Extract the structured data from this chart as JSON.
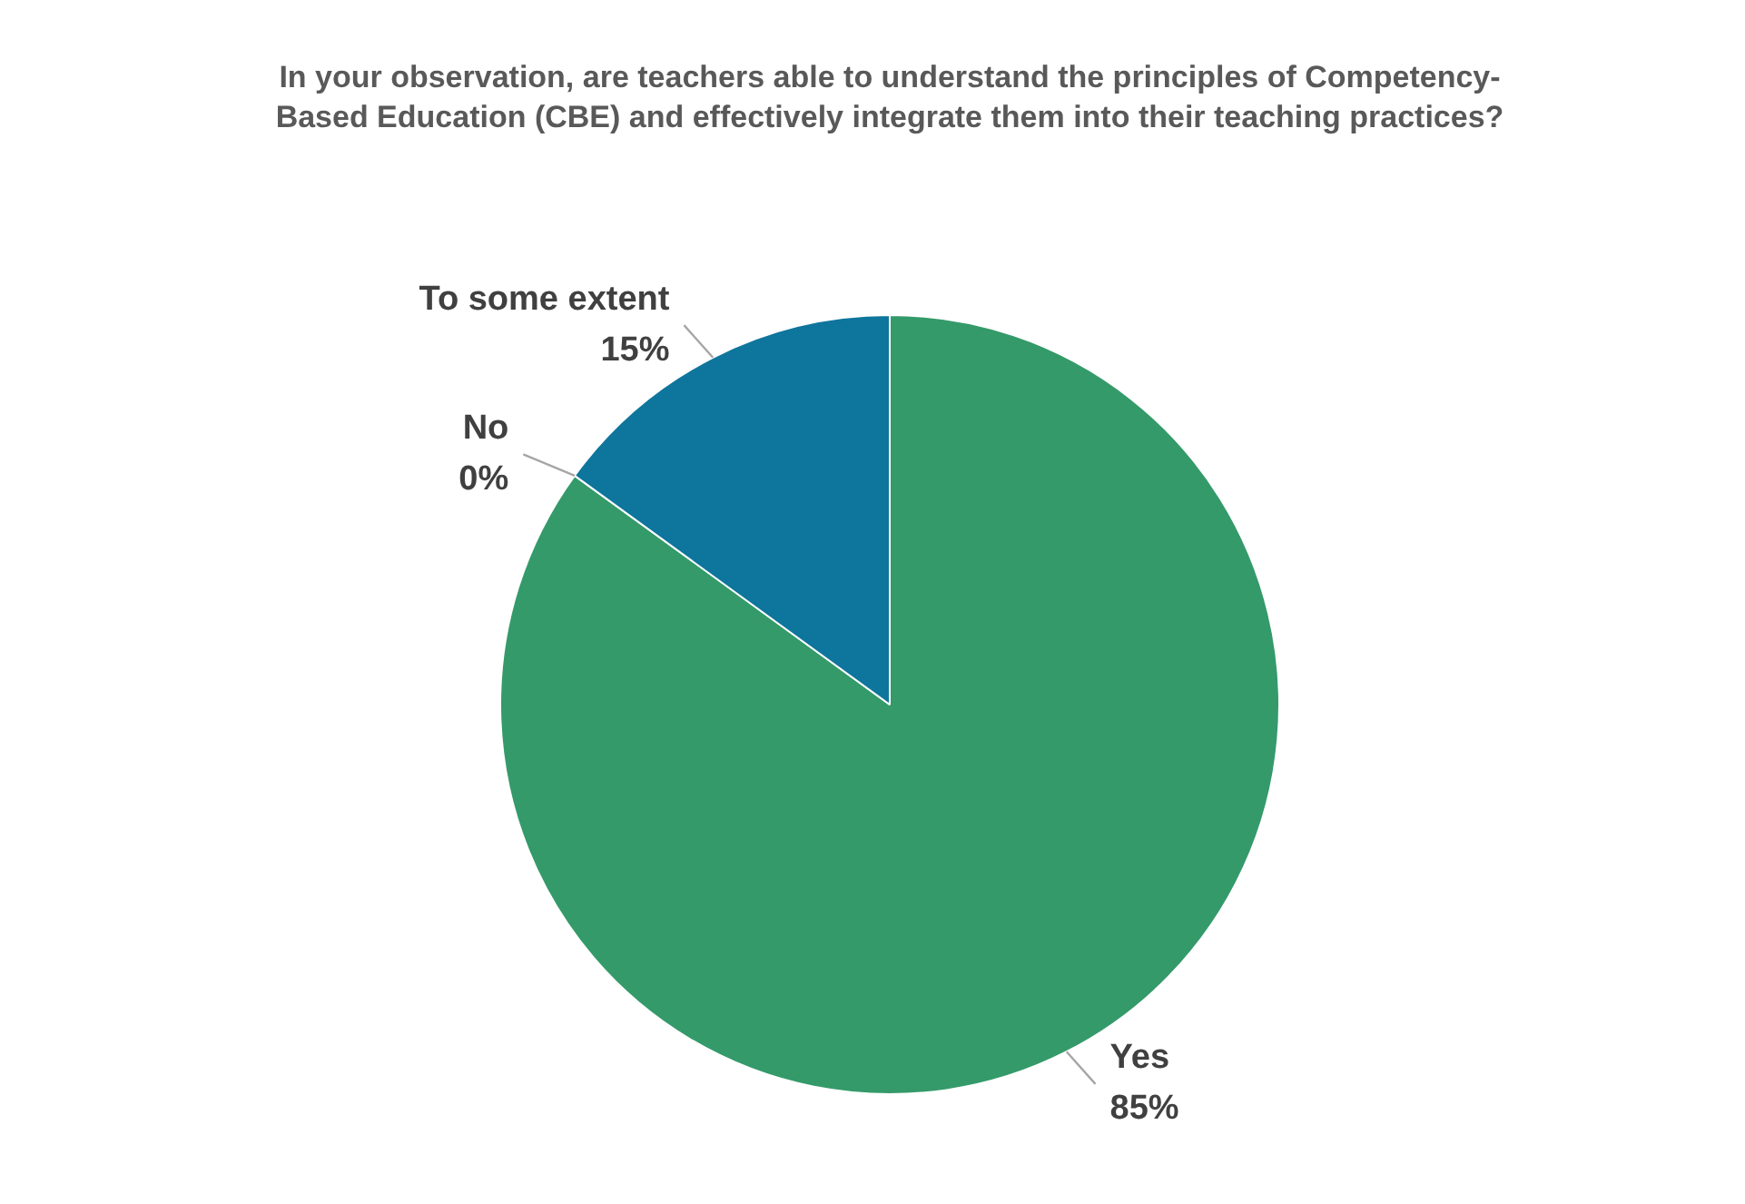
{
  "chart_data": {
    "type": "pie",
    "title": "In your observation, are teachers able to understand the principles of Competency-Based Education (CBE) and effectively integrate them into their teaching practices?",
    "categories": [
      "Yes",
      "No",
      "To some extent"
    ],
    "values": [
      85,
      0,
      15
    ],
    "colors": [
      "#349a6a",
      "#5b9bd5",
      "#0e759c"
    ],
    "value_labels": [
      "85%",
      "0%",
      "15%"
    ],
    "legend": false
  }
}
